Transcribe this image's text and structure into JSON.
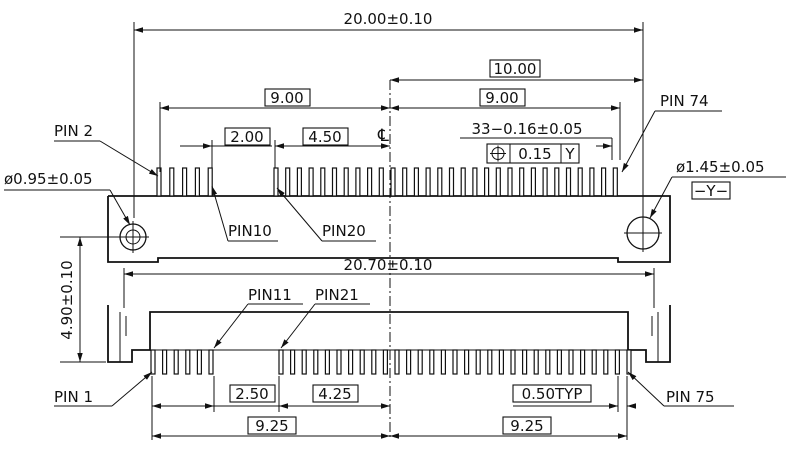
{
  "dimensions": {
    "overall_width": "20.00±0.10",
    "half_width": "10.00",
    "top_left_span": "9.00",
    "top_right_span": "9.00",
    "top_gap_a": "2.00",
    "top_gap_b": "4.50",
    "centerline": "℄",
    "pitch_top": "33−0.16±0.05",
    "position_tol": "0.15",
    "datum_ref": "Y",
    "hole_small": "ø0.95±0.05",
    "hole_large": "ø1.45±0.05",
    "datum_label": "−Y−",
    "body_width": "20.70±0.10",
    "height": "4.90±0.10",
    "bottom_gap_a": "2.50",
    "bottom_gap_b": "4.25",
    "pitch_bottom": "0.50TYP",
    "bottom_left_span": "9.25",
    "bottom_right_span": "9.25"
  },
  "pins": {
    "pin2": "PIN  2",
    "pin10": "PIN10",
    "pin20": "PIN20",
    "pin74": "PIN  74",
    "pin11": "PIN11",
    "pin21": "PIN21",
    "pin1": "PIN  1",
    "pin75": "PIN  75"
  }
}
